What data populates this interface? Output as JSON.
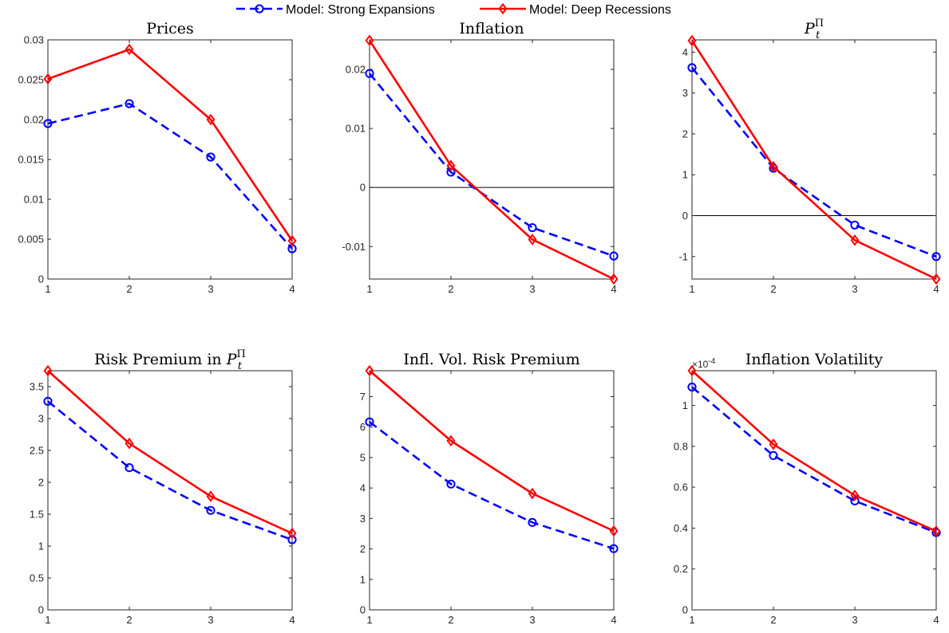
{
  "legend": {
    "entries": [
      {
        "label": "Model: Strong Expansions",
        "color": "#0000ff",
        "style": "dashed",
        "marker": "circle"
      },
      {
        "label": "Model: Deep Recessions",
        "color": "#ff0000",
        "style": "solid",
        "marker": "diamond"
      }
    ],
    "placement": "top-center"
  },
  "chart_data": [
    {
      "type": "line",
      "title": "Prices",
      "x": [
        1,
        2,
        3,
        4
      ],
      "xlim": [
        1,
        4
      ],
      "ylim": [
        0,
        0.03
      ],
      "xticks": [
        "1",
        "2",
        "3",
        "4"
      ],
      "yticks": [
        0,
        0.005,
        0.01,
        0.015,
        0.02,
        0.025,
        0.03
      ],
      "ytick_labels": [
        "0",
        "0.005",
        "0.01",
        "0.015",
        "0.02",
        "0.025",
        "0.03"
      ],
      "zero_line": false,
      "series": [
        {
          "name": "Model: Strong Expansions",
          "values": [
            0.0195,
            0.022,
            0.0153,
            0.0038
          ]
        },
        {
          "name": "Model: Deep Recessions",
          "values": [
            0.0251,
            0.0288,
            0.02,
            0.0048
          ]
        }
      ]
    },
    {
      "type": "line",
      "title": "Inflation",
      "x": [
        1,
        2,
        3,
        4
      ],
      "xlim": [
        1,
        4
      ],
      "ylim": [
        -0.0155,
        0.025
      ],
      "xticks": [
        "1",
        "2",
        "3",
        "4"
      ],
      "yticks": [
        -0.01,
        0,
        0.01,
        0.02
      ],
      "ytick_labels": [
        "-0.01",
        "0",
        "0.01",
        "0.02"
      ],
      "zero_line": true,
      "series": [
        {
          "name": "Model: Strong Expansions",
          "values": [
            0.0193,
            0.0026,
            -0.0068,
            -0.0116
          ]
        },
        {
          "name": "Model: Deep Recessions",
          "values": [
            0.0249,
            0.0037,
            -0.0088,
            -0.0155
          ]
        }
      ]
    },
    {
      "type": "line",
      "title": "P_t^Π",
      "title_main": "P",
      "title_sub": "t",
      "title_sup": "Π",
      "x": [
        1,
        2,
        3,
        4
      ],
      "xlim": [
        1,
        4
      ],
      "ylim": [
        -1.55,
        4.3
      ],
      "xticks": [
        "1",
        "2",
        "3",
        "4"
      ],
      "yticks": [
        -1,
        0,
        1,
        2,
        3,
        4
      ],
      "ytick_labels": [
        "-1",
        "0",
        "1",
        "2",
        "3",
        "4"
      ],
      "zero_line": true,
      "series": [
        {
          "name": "Model: Strong Expansions",
          "values": [
            3.62,
            1.16,
            -0.23,
            -1.0
          ]
        },
        {
          "name": "Model: Deep Recessions",
          "values": [
            4.28,
            1.2,
            -0.6,
            -1.55
          ]
        }
      ]
    },
    {
      "type": "line",
      "title": "Risk Premium in P_t^Π",
      "title_main": "Risk Premium in P",
      "title_sub": "t",
      "title_sup": "Π",
      "x": [
        1,
        2,
        3,
        4
      ],
      "xlim": [
        1,
        4
      ],
      "ylim": [
        0,
        3.75
      ],
      "xticks": [
        "1",
        "2",
        "3",
        "4"
      ],
      "yticks": [
        0,
        0.5,
        1,
        1.5,
        2,
        2.5,
        3,
        3.5
      ],
      "ytick_labels": [
        "0",
        "0.5",
        "1",
        "1.5",
        "2",
        "2.5",
        "3",
        "3.5"
      ],
      "zero_line": false,
      "series": [
        {
          "name": "Model: Strong Expansions",
          "values": [
            3.27,
            2.23,
            1.56,
            1.1
          ]
        },
        {
          "name": "Model: Deep Recessions",
          "values": [
            3.75,
            2.61,
            1.78,
            1.2
          ]
        }
      ]
    },
    {
      "type": "line",
      "title": "Infl. Vol. Risk Premium",
      "x": [
        1,
        2,
        3,
        4
      ],
      "xlim": [
        1,
        4
      ],
      "ylim": [
        0,
        7.85
      ],
      "xticks": [
        "1",
        "2",
        "3",
        "4"
      ],
      "yticks": [
        0,
        1,
        2,
        3,
        4,
        5,
        6,
        7
      ],
      "ytick_labels": [
        "0",
        "1",
        "2",
        "3",
        "4",
        "5",
        "6",
        "7"
      ],
      "zero_line": false,
      "series": [
        {
          "name": "Model: Strong Expansions",
          "values": [
            6.17,
            4.13,
            2.87,
            2.01
          ]
        },
        {
          "name": "Model: Deep Recessions",
          "values": [
            7.85,
            5.55,
            3.82,
            2.59
          ]
        }
      ]
    },
    {
      "type": "line",
      "title": "Inflation Volatility",
      "exponent_label": "×10",
      "exponent_power": "-4",
      "x": [
        1,
        2,
        3,
        4
      ],
      "xlim": [
        1,
        4
      ],
      "ylim": [
        0,
        1.17
      ],
      "xticks": [
        "1",
        "2",
        "3",
        "4"
      ],
      "yticks": [
        0,
        0.2,
        0.4,
        0.6,
        0.8,
        1
      ],
      "ytick_labels": [
        "0",
        "0.2",
        "0.4",
        "0.6",
        "0.8",
        "1"
      ],
      "zero_line": false,
      "series": [
        {
          "name": "Model: Strong Expansions",
          "values": [
            1.09,
            0.755,
            0.533,
            0.378
          ]
        },
        {
          "name": "Model: Deep Recessions",
          "values": [
            1.17,
            0.81,
            0.56,
            0.385
          ]
        }
      ]
    }
  ]
}
